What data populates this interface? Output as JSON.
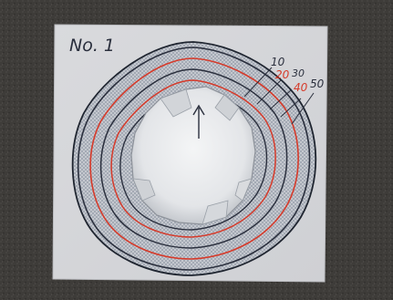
{
  "photo": {
    "specimen_label": "No. 1",
    "contour_labels": [
      {
        "text": "10",
        "color": "#2a2f3d"
      },
      {
        "text": "20",
        "color": "#d63a2a"
      },
      {
        "text": "30",
        "color": "#2a2f3d"
      },
      {
        "text": "40",
        "color": "#d63a2a"
      },
      {
        "text": "50",
        "color": "#2a2f3d"
      }
    ]
  },
  "colors": {
    "ground": "#3e3c39",
    "board": "#dcdde0",
    "ink_dark": "#2a2f3d",
    "ink_red": "#d63a2a",
    "hole": "#eceef0"
  }
}
